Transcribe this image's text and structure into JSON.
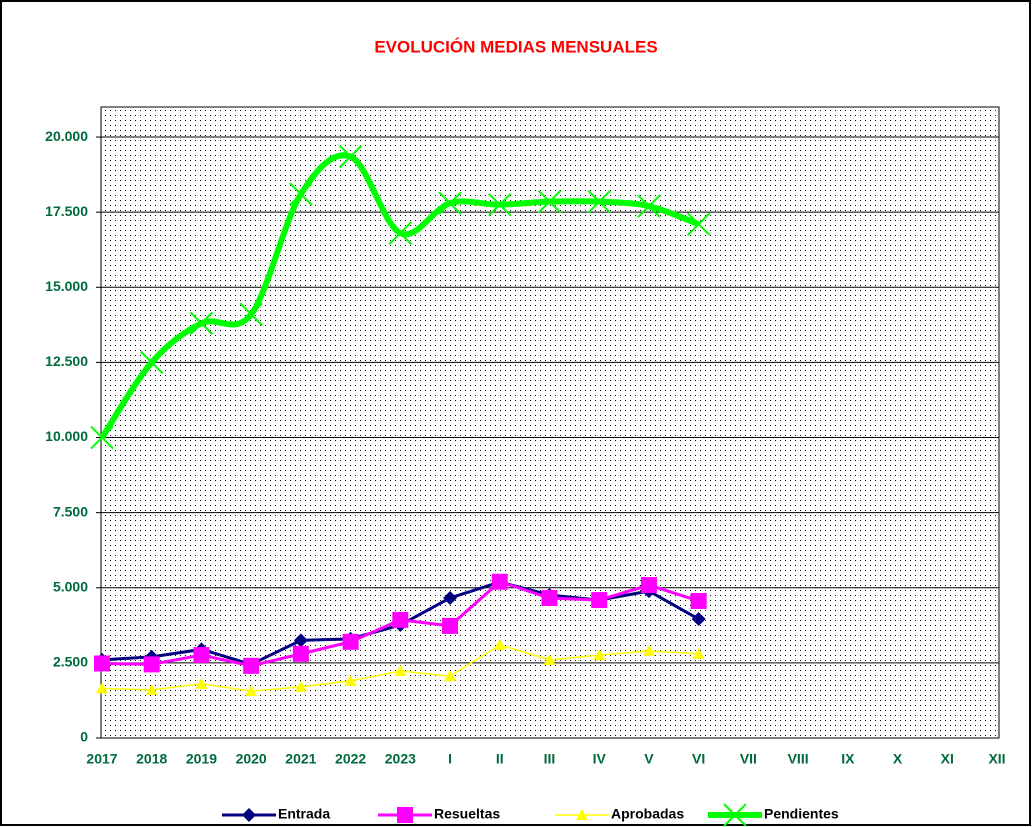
{
  "chart_data": {
    "type": "line",
    "title": "EVOLUCIÓN MEDIAS MENSUALES",
    "categories": [
      "2017",
      "2018",
      "2019",
      "2020",
      "2021",
      "2022",
      "2023",
      "I",
      "II",
      "III",
      "IV",
      "V",
      "VI",
      "VII",
      "VIII",
      "IX",
      "X",
      "XI",
      "XII"
    ],
    "series": [
      {
        "name": "Entrada",
        "color": "#000080",
        "marker": "diamond",
        "values": [
          2600,
          2700,
          2950,
          2450,
          3250,
          3300,
          3760,
          4660,
          5190,
          4760,
          4590,
          4890,
          3960,
          null,
          null,
          null,
          null,
          null,
          null
        ]
      },
      {
        "name": "Resueltas",
        "color": "#ff00ff",
        "marker": "square",
        "values": [
          2480,
          2450,
          2760,
          2400,
          2800,
          3200,
          3930,
          3730,
          5200,
          4660,
          4590,
          5090,
          4560,
          null,
          null,
          null,
          null,
          null,
          null
        ]
      },
      {
        "name": "Aprobadas",
        "color": "#ffff00",
        "marker": "triangle",
        "values": [
          1650,
          1600,
          1800,
          1560,
          1700,
          1900,
          2230,
          2060,
          3100,
          2600,
          2760,
          2900,
          2800,
          null,
          null,
          null,
          null,
          null,
          null
        ]
      },
      {
        "name": "Pendientes",
        "color": "#00ff00",
        "marker": "x",
        "smooth": true,
        "values": [
          10000,
          12500,
          13800,
          14100,
          18100,
          19350,
          16800,
          17800,
          17750,
          17850,
          17850,
          17700,
          17100,
          null,
          null,
          null,
          null,
          null,
          null
        ]
      }
    ],
    "ylim": [
      0,
      21000
    ],
    "yticks": [
      0,
      {
        "value": 2500,
        "label": "2.500"
      },
      {
        "value": 5000,
        "label": "5.000"
      },
      {
        "value": 7500,
        "label": "7.500"
      },
      {
        "value": 10000,
        "label": "10.000"
      },
      {
        "value": 12500,
        "label": "12.500"
      },
      {
        "value": 15000,
        "label": "15.000"
      },
      {
        "value": 17500,
        "label": "17.500"
      },
      {
        "value": 20000,
        "label": "20.000"
      }
    ],
    "grid": true,
    "legend": "bottom"
  }
}
